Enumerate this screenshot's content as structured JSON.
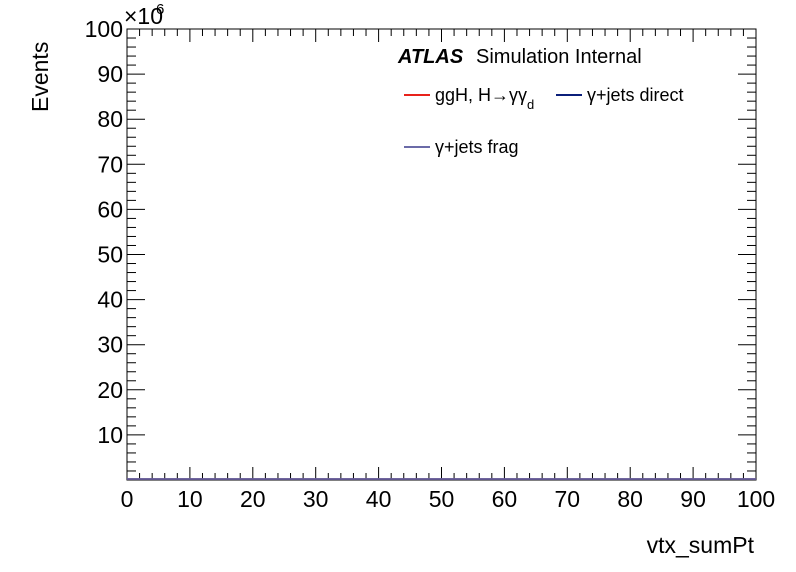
{
  "chart_data": {
    "type": "line",
    "xlabel": "vtx_sumPt",
    "ylabel": "Events",
    "xlim": [
      0,
      100
    ],
    "ylim": [
      0,
      100
    ],
    "x_ticks": [
      0,
      10,
      20,
      30,
      40,
      50,
      60,
      70,
      80,
      90,
      100
    ],
    "y_ticks": [
      10,
      20,
      30,
      40,
      50,
      60,
      70,
      80,
      90,
      100
    ],
    "y_exponent": "×10",
    "y_exponent_power": "6",
    "grid": false,
    "legend_position": "top-right",
    "annotation": {
      "experiment": "ATLAS",
      "status": "Simulation Internal"
    },
    "series": [
      {
        "name": "ggH, H→γγ",
        "name_subscript": "d",
        "color": "#e8221b",
        "x": [],
        "y": []
      },
      {
        "name": "γ+jets direct",
        "color": "#0b1f7a",
        "x": [],
        "y": []
      },
      {
        "name": "γ+jets frag",
        "color": "#6b6ba8",
        "x": [],
        "y": []
      }
    ]
  }
}
